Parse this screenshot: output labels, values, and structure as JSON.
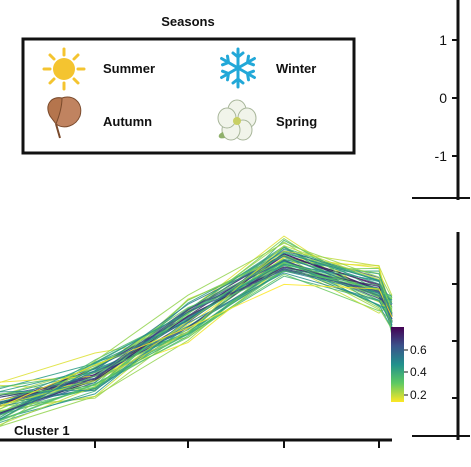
{
  "legend": {
    "title": "Seasons",
    "items": [
      {
        "label": "Summer",
        "icon": "sun-icon",
        "color": "#f4c430"
      },
      {
        "label": "Winter",
        "icon": "snowflake-icon",
        "color": "#22a8d8"
      },
      {
        "label": "Autumn",
        "icon": "autumn-leaf-icon",
        "color": "#b5754d"
      },
      {
        "label": "Spring",
        "icon": "flower-icon",
        "color": "#f1f4ea"
      }
    ]
  },
  "chart_data": [
    {
      "type": "line",
      "panel": "top-right (partially visible)",
      "yticks": [
        "1",
        "0",
        "-1"
      ]
    },
    {
      "type": "line",
      "panel": "bottom (partially visible)",
      "annotation": "Cluster 1",
      "x": [
        0,
        1,
        2,
        3,
        4,
        5
      ],
      "series_count": 60,
      "trend": [
        -0.9,
        -0.55,
        0.15,
        0.85,
        0.5,
        0.2
      ],
      "colorbar": {
        "ticks": [
          "0.6",
          "0.4",
          "0.2"
        ],
        "range": [
          0.2,
          0.7
        ],
        "colormap": "viridis",
        "colors": [
          "#fde725",
          "#5ec962",
          "#21918c",
          "#3b528b",
          "#440154"
        ]
      }
    }
  ]
}
